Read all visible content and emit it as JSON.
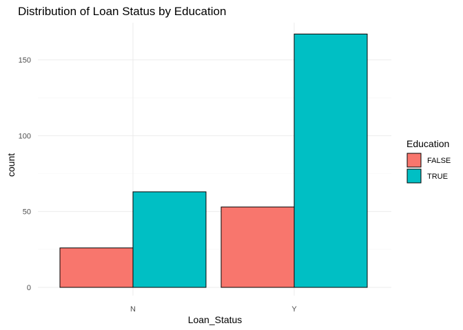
{
  "chart_data": {
    "type": "bar",
    "title": "Distribution of Loan Status by Education",
    "xlabel": "Loan_Status",
    "ylabel": "count",
    "categories": [
      "N",
      "Y"
    ],
    "series": [
      {
        "name": "FALSE",
        "values": [
          26,
          53
        ],
        "color": "#F8766D"
      },
      {
        "name": "TRUE",
        "values": [
          63,
          167
        ],
        "color": "#00BFC4"
      }
    ],
    "ylim": [
      0,
      175
    ],
    "yticks": [
      0,
      50,
      100,
      150
    ],
    "legend": {
      "title": "Education",
      "position": "right"
    },
    "grid": true
  }
}
